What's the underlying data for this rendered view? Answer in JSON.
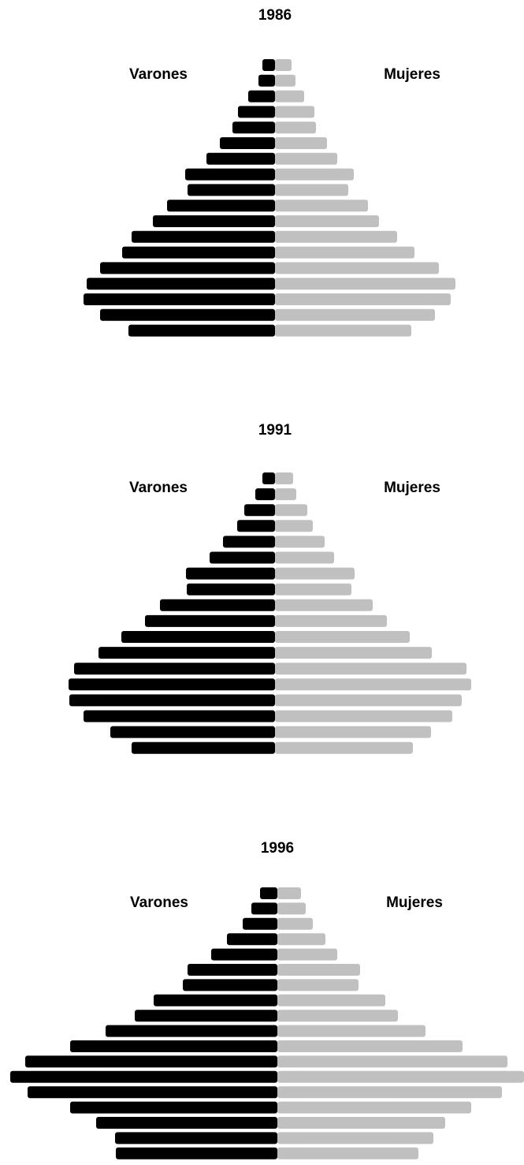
{
  "chart_data": [
    {
      "type": "pyramid",
      "title": "1986",
      "series": [
        {
          "name": "Varones",
          "color": "#000000",
          "values": [
            16,
            21,
            34,
            47,
            54,
            70,
            87,
            114,
            111,
            137,
            155,
            182,
            194,
            222,
            239,
            243,
            222,
            186
          ]
        },
        {
          "name": "Mujeres",
          "color": "#c0c0c0",
          "values": [
            21,
            26,
            37,
            50,
            52,
            66,
            79,
            100,
            93,
            118,
            132,
            155,
            177,
            208,
            229,
            223,
            203,
            173
          ]
        }
      ]
    },
    {
      "type": "pyramid",
      "title": "1991",
      "series": [
        {
          "name": "Varones",
          "color": "#000000",
          "values": [
            16,
            25,
            39,
            48,
            66,
            83,
            113,
            112,
            146,
            165,
            195,
            224,
            255,
            262,
            261,
            243,
            209,
            182
          ]
        },
        {
          "name": "Mujeres",
          "color": "#c0c0c0",
          "values": [
            23,
            27,
            41,
            48,
            63,
            75,
            101,
            97,
            124,
            142,
            171,
            199,
            243,
            249,
            237,
            225,
            198,
            175
          ]
        }
      ]
    },
    {
      "type": "pyramid",
      "title": "1996",
      "series": [
        {
          "name": "Varones",
          "color": "#000000",
          "values": [
            22,
            33,
            44,
            64,
            84,
            114,
            120,
            157,
            181,
            218,
            263,
            320,
            339,
            317,
            263,
            230,
            206,
            205
          ]
        },
        {
          "name": "Mujeres",
          "color": "#c0c0c0",
          "values": [
            30,
            36,
            45,
            61,
            76,
            105,
            103,
            137,
            153,
            188,
            235,
            292,
            313,
            285,
            246,
            213,
            198,
            179
          ]
        }
      ]
    }
  ]
}
